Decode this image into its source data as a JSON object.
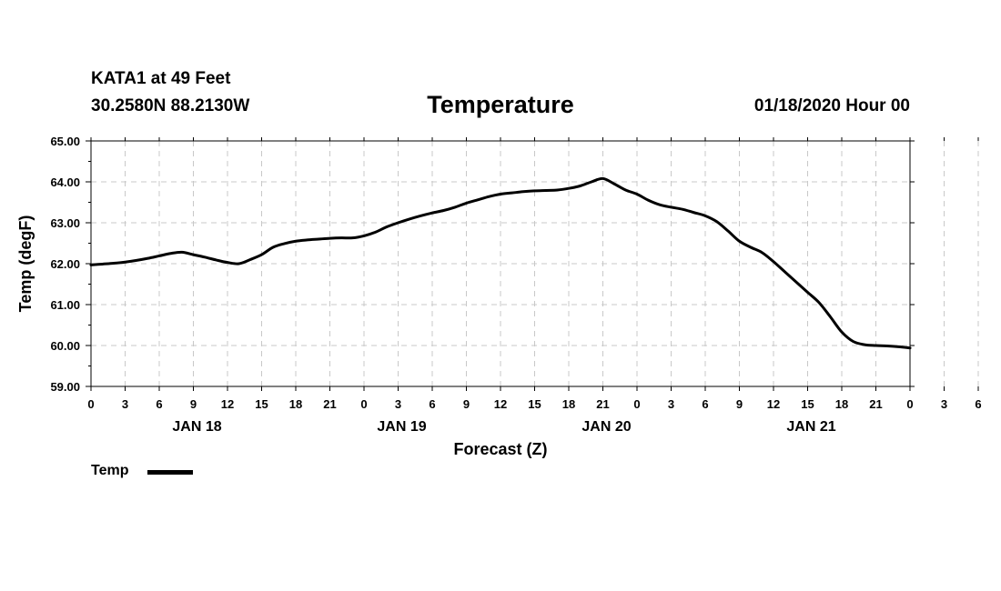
{
  "header": {
    "station": "KATA1 at 49 Feet",
    "coords": "30.2580N 88.2130W",
    "title": "Temperature",
    "datetime": "01/18/2020 Hour 00"
  },
  "chart_data": {
    "type": "line",
    "title": "Temperature",
    "xlabel": "Forecast (Z)",
    "ylabel": "Temp (degF)",
    "ylim": [
      59,
      65
    ],
    "xlim": [
      0,
      72
    ],
    "y_ticks": [
      "59.00",
      "60.00",
      "61.00",
      "62.00",
      "63.00",
      "64.00",
      "65.00"
    ],
    "x_ticks": [
      "0",
      "3",
      "6",
      "9",
      "12",
      "15",
      "18",
      "21",
      "0",
      "3",
      "6",
      "9",
      "12",
      "15",
      "18",
      "21",
      "0",
      "3",
      "6",
      "9",
      "12",
      "15",
      "18",
      "21",
      "0",
      "3",
      "6",
      "9",
      "12",
      "15",
      "18",
      "21",
      "0"
    ],
    "day_labels": [
      {
        "label": "JAN 18",
        "hour": 9
      },
      {
        "label": "JAN 19",
        "hour": 27
      },
      {
        "label": "JAN 20",
        "hour": 45
      },
      {
        "label": "JAN 21",
        "hour": 63
      }
    ],
    "grid": true,
    "legend": "bottom-left",
    "series": [
      {
        "name": "Temp",
        "color": "#000000",
        "x": [
          0,
          1,
          2,
          3,
          4,
          5,
          6,
          7,
          8,
          9,
          10,
          11,
          12,
          13,
          14,
          15,
          16,
          17,
          18,
          19,
          20,
          21,
          22,
          23,
          24,
          25,
          26,
          27,
          28,
          29,
          30,
          31,
          32,
          33,
          34,
          35,
          36,
          37,
          38,
          39,
          40,
          41,
          42,
          43,
          44,
          45,
          46,
          47,
          48,
          49,
          50,
          51,
          52,
          53,
          54,
          55,
          56,
          57,
          58,
          59,
          60,
          61,
          62,
          63,
          64,
          65,
          66,
          67,
          68,
          69,
          70,
          71,
          72
        ],
        "values": [
          61.97,
          61.99,
          62.01,
          62.04,
          62.08,
          62.13,
          62.19,
          62.25,
          62.28,
          62.22,
          62.16,
          62.09,
          62.03,
          62.0,
          62.1,
          62.22,
          62.4,
          62.49,
          62.55,
          62.58,
          62.6,
          62.62,
          62.63,
          62.63,
          62.68,
          62.77,
          62.9,
          63.0,
          63.09,
          63.17,
          63.24,
          63.3,
          63.38,
          63.48,
          63.56,
          63.64,
          63.7,
          63.73,
          63.76,
          63.78,
          63.79,
          63.8,
          63.84,
          63.9,
          64.0,
          64.08,
          63.95,
          63.8,
          63.7,
          63.55,
          63.44,
          63.38,
          63.33,
          63.25,
          63.17,
          63.03,
          62.8,
          62.55,
          62.4,
          62.27,
          62.05,
          61.8,
          61.55,
          61.3,
          61.05,
          60.7,
          60.33,
          60.1,
          60.02,
          60.0,
          59.99,
          59.97,
          59.94
        ]
      }
    ]
  }
}
